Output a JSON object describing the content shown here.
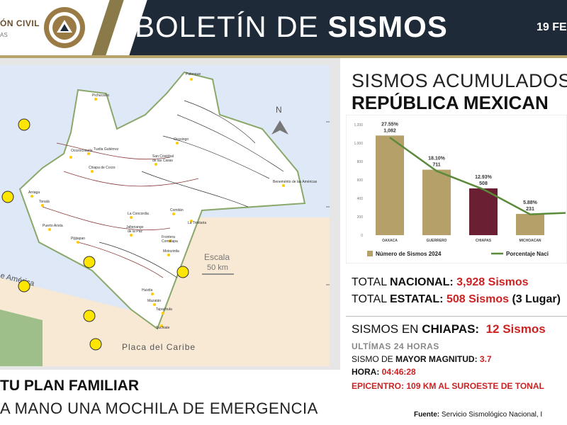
{
  "header": {
    "org_label": "ÓN CIVIL",
    "org_sub": "AS",
    "title_regular": "BOLETÍN DE ",
    "title_bold": "SISMOS",
    "date": "19 FE"
  },
  "map": {
    "north_label": "N",
    "scale_label": "Escala",
    "scale_value": "50 km",
    "plate_label": "Placa del Caribe",
    "plate_label_2": "e América",
    "towns": [
      "Palenque",
      "Pichucalco",
      "Ocosingo",
      "Ostuacán",
      "Tecpatán",
      "Ocozocoautla",
      "Tuxtla Gutiérrez",
      "San Cristóbal de las Casas",
      "Chiapa de Corzo",
      "Arriaga",
      "Tonalá",
      "Comitán",
      "La Trinitaria",
      "Benemérito de las Américas",
      "Puerto Arista",
      "La Concordia",
      "Jaltenango de la Paz",
      "Pijijiapan",
      "Frontera Comalapa",
      "Motozintla",
      "Huixtla",
      "Mazatán",
      "Tapachula",
      "Suchiate"
    ],
    "colors": {
      "land": "#ffffff",
      "sea": "#dfe8f6",
      "caribbean": "#f7e9d4",
      "border": "#8aa86a",
      "marker": "#ffe600"
    }
  },
  "left_banner": {
    "line1": "TU PLAN FAMILIAR",
    "line2": "A MANO UNA MOCHILA DE EMERGENCIA"
  },
  "right": {
    "title_line1": "SISMOS ACUMULADOS",
    "title_line2": "REPÚBLICA MEXICAN",
    "total_nacional_label": "TOTAL ",
    "total_nacional_bold": "NACIONAL:",
    "total_nacional_value": "3,928 Sismos",
    "total_estatal_label": "TOTAL ",
    "total_estatal_bold": "ESTATAL:",
    "total_estatal_value": "508  Sismos",
    "total_estatal_suffix": " (3 Lugar)",
    "chiapas_label": "SISMOS EN ",
    "chiapas_bold": "CHIAPAS:",
    "chiapas_value": "12 Sismos",
    "ultimas": "ULTÍMAS 24 HORAS",
    "magnitud_label": "SISMO DE ",
    "magnitud_bold": "MAYOR MAGNITUD:",
    "magnitud_value": "3.7",
    "hora_label": "HORA:",
    "hora_value": "04:46:28",
    "epicentro_label": "EPICENTRO:",
    "epicentro_value": "109  KM  AL  SUROESTE  DE  TONAL",
    "source_label": "Fuente:",
    "source_value": " Servicio Sismológico Nacional, I"
  },
  "chart_data": {
    "type": "bar",
    "categories": [
      "OAXACA",
      "GUERRERO",
      "CHIAPAS",
      "MICHOACAN"
    ],
    "series": [
      {
        "name": "Número de Sismos 2024",
        "values": [
          1082,
          711,
          508,
          231
        ],
        "colors": [
          "#b5a06a",
          "#b5a06a",
          "#6a1f33",
          "#b5a06a"
        ]
      },
      {
        "name": "Porcentaje Naci",
        "values": [
          27.55,
          18.1,
          12.93,
          5.88
        ],
        "color": "#5a8a3a"
      }
    ],
    "data_labels": [
      "27.55%",
      "18.10%",
      "12.93%",
      "5.88%"
    ],
    "count_labels": [
      "1,082",
      "711",
      "508",
      "231"
    ],
    "yticks": [
      "0",
      "200",
      "400",
      "600",
      "800",
      "1,000",
      "1,200"
    ],
    "ylim": [
      0,
      1200
    ],
    "legend_position": "bottom"
  }
}
